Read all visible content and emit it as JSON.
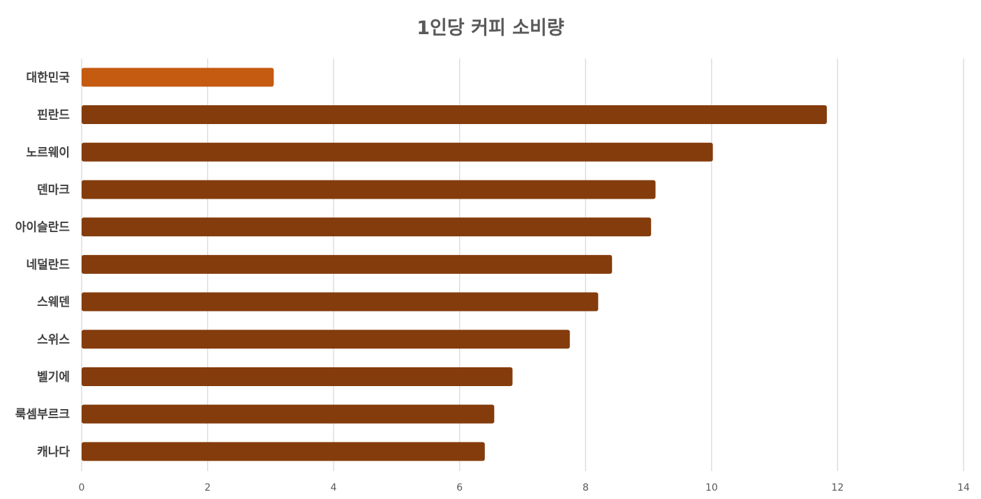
{
  "chart_data": {
    "type": "bar",
    "orientation": "horizontal",
    "title": "1인당 커피 소비량",
    "xlabel": "",
    "ylabel": "",
    "categories": [
      "대한민국",
      "핀란드",
      "노르웨이",
      "덴마크",
      "아이슬란드",
      "네덜란드",
      "스웨덴",
      "스위스",
      "벨기에",
      "룩셈부르크",
      "캐나다"
    ],
    "values": [
      3.05,
      11.83,
      10.02,
      9.11,
      9.04,
      8.42,
      8.2,
      7.75,
      6.84,
      6.55,
      6.4
    ],
    "xlim": [
      0,
      14
    ],
    "xticks": [
      "0",
      "2",
      "4",
      "6",
      "8",
      "10",
      "12",
      "14"
    ],
    "grid": true,
    "legend": "none",
    "colors": {
      "highlight": "#C55A11",
      "default": "#843C0C",
      "grid": "#D9D9D9"
    },
    "highlight_index": 0
  }
}
